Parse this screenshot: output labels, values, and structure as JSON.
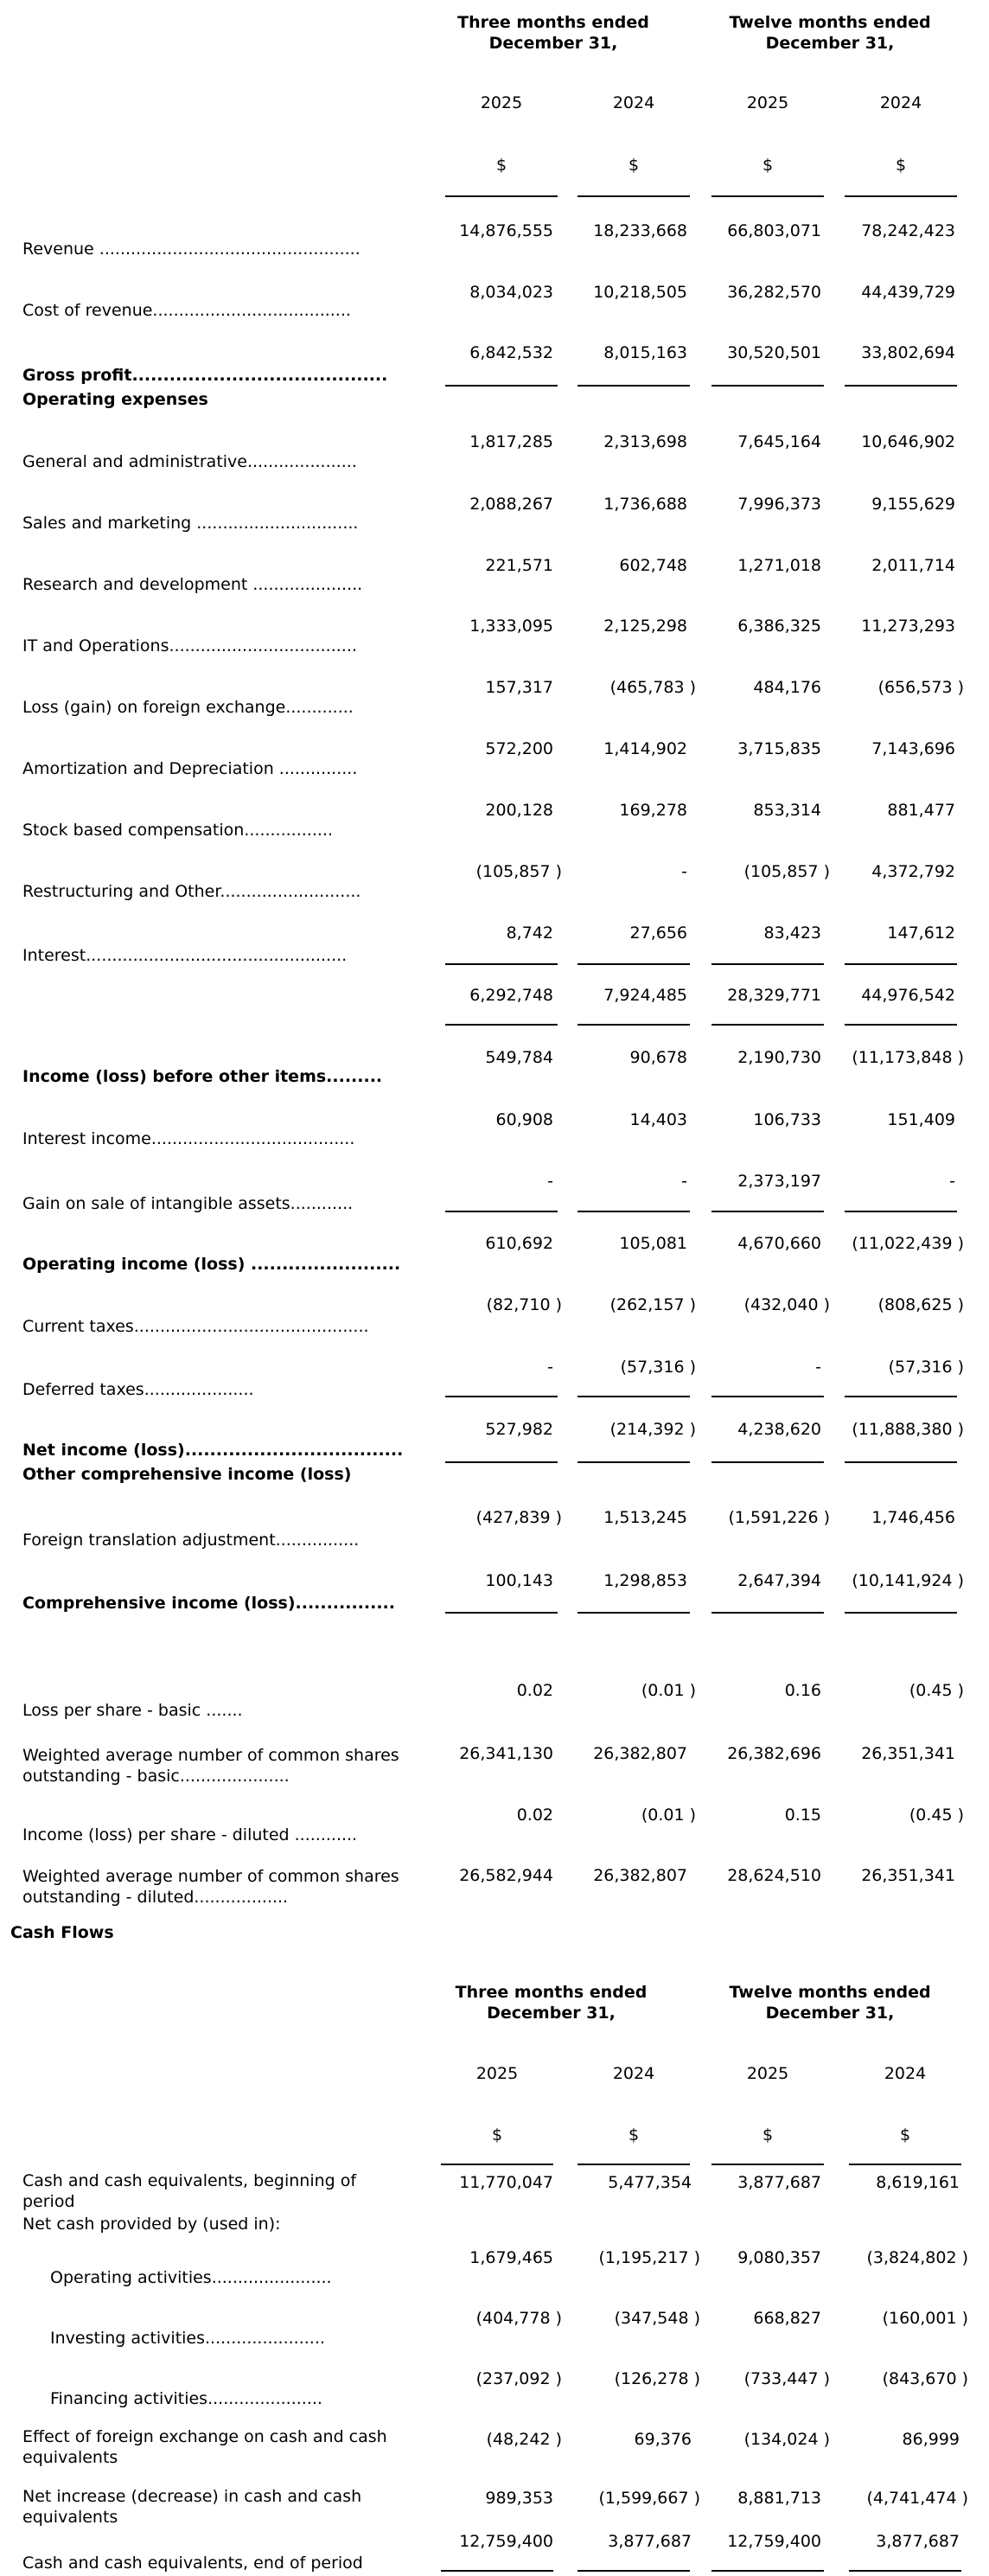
{
  "income": {
    "header": {
      "three_months": [
        "Three months ended",
        "December 31,"
      ],
      "twelve_months": [
        "Twelve months ended",
        "December 31,"
      ],
      "years": [
        "2025",
        "2024",
        "2025",
        "2024"
      ],
      "currency": "$"
    },
    "rows": [
      {
        "label": "Revenue ..................................................",
        "values": [
          "14,876,555",
          "18,233,668",
          "66,803,071",
          "78,242,423"
        ],
        "bold": false
      },
      {
        "label": "Cost of revenue......................................",
        "values": [
          "8,034,023",
          "10,218,505",
          "36,282,570",
          "44,439,729"
        ],
        "bold": false
      },
      {
        "label": "Gross profit.........................................",
        "values": [
          "6,842,532",
          "8,015,163",
          "30,520,501",
          "33,802,694"
        ],
        "bold": true
      },
      {
        "label": "Operating expenses",
        "values": [],
        "bold": true
      },
      {
        "label": "General and administrative.....................",
        "values": [
          "1,817,285",
          "2,313,698",
          "7,645,164",
          "10,646,902"
        ],
        "bold": false
      },
      {
        "label": "Sales and marketing ...............................",
        "values": [
          "2,088,267",
          "1,736,688",
          "7,996,373",
          "9,155,629"
        ],
        "bold": false
      },
      {
        "label": "Research and development .....................",
        "values": [
          "221,571",
          "602,748",
          "1,271,018",
          "2,011,714"
        ],
        "bold": false
      },
      {
        "label": "IT and Operations....................................",
        "values": [
          "1,333,095",
          "2,125,298",
          "6,386,325",
          "11,273,293"
        ],
        "bold": false
      },
      {
        "label": "Loss (gain) on foreign exchange.............",
        "values": [
          "157,317",
          "(465,783 )",
          "484,176",
          "(656,573 )"
        ],
        "bold": false
      },
      {
        "label": "Amortization and Depreciation ...............",
        "values": [
          "572,200",
          "1,414,902",
          "3,715,835",
          "7,143,696"
        ],
        "bold": false
      },
      {
        "label": "Stock based compensation.................",
        "values": [
          "200,128",
          "169,278",
          "853,314",
          "881,477"
        ],
        "bold": false
      },
      {
        "label": "Restructuring and Other...........................",
        "values": [
          "(105,857 )",
          "-",
          "(105,857 )",
          "4,372,792"
        ],
        "bold": false
      },
      {
        "label": "Interest..................................................",
        "values": [
          "8,742",
          "27,656",
          "83,423",
          "147,612"
        ],
        "bold": false
      },
      {
        "label": "",
        "values": [
          "6,292,748",
          "7,924,485",
          "28,329,771",
          "44,976,542"
        ],
        "bold": false
      },
      {
        "label": "Income (loss) before other items.........",
        "values": [
          "549,784",
          "90,678",
          "2,190,730",
          "(11,173,848 )"
        ],
        "bold": true
      },
      {
        "label": "Interest income.......................................",
        "values": [
          "60,908",
          "14,403",
          "106,733",
          "151,409"
        ],
        "bold": false
      },
      {
        "label": "Gain on sale of intangible assets............",
        "values": [
          "-",
          "-",
          "2,373,197",
          "-"
        ],
        "bold": false
      },
      {
        "label": "Operating income (loss) ........................",
        "values": [
          "610,692",
          "105,081",
          "4,670,660",
          "(11,022,439 )"
        ],
        "bold": true
      },
      {
        "label": "Current taxes.............................................",
        "values": [
          "(82,710 )",
          "(262,157 )",
          "(432,040 )",
          "(808,625 )"
        ],
        "bold": false
      },
      {
        "label": "Deferred taxes.....................",
        "values": [
          "-",
          "(57,316 )",
          "-",
          "(57,316 )"
        ],
        "bold": false
      },
      {
        "label": "Net income (loss)...................................",
        "values": [
          "527,982",
          "(214,392 )",
          "4,238,620",
          "(11,888,380 )"
        ],
        "bold": true
      },
      {
        "label": "Other comprehensive income (loss)",
        "values": [],
        "bold": true
      },
      {
        "label": "Foreign translation adjustment................",
        "values": [
          "(427,839 )",
          "1,513,245",
          "(1,591,226 )",
          "1,746,456"
        ],
        "bold": false
      },
      {
        "label": "Comprehensive income (loss)................",
        "values": [
          "100,143",
          "1,298,853",
          "2,647,394",
          "(10,141,924 )"
        ],
        "bold": true
      },
      {
        "label": "Loss per share - basic .......",
        "values": [
          "0.02",
          "(0.01 )",
          "0.16",
          "(0.45 )"
        ],
        "bold": false
      },
      {
        "label": [
          "Weighted average number of common shares",
          "outstanding - basic....................."
        ],
        "values": [
          "26,341,130",
          "26,382,807",
          "26,382,696",
          "26,351,341"
        ],
        "bold": false
      },
      {
        "label": "Income (loss) per share - diluted ............",
        "values": [
          "0.02",
          "(0.01 )",
          "0.15",
          "(0.45 )"
        ],
        "bold": false
      },
      {
        "label": [
          "Weighted average number of common shares",
          "outstanding - diluted.................."
        ],
        "values": [
          "26,582,944",
          "26,382,807",
          "28,624,510",
          "26,351,341"
        ],
        "bold": false
      }
    ]
  },
  "cash_flows": {
    "title": "Cash Flows",
    "header": {
      "three_months": [
        "Three months ended",
        "December 31,"
      ],
      "twelve_months": [
        "Twelve months ended",
        "December 31,"
      ],
      "years": [
        "2025",
        "2024",
        "2025",
        "2024"
      ],
      "currency": "$"
    },
    "rows": [
      {
        "label": [
          "Cash and cash equivalents, beginning of",
          "period"
        ],
        "values": [
          "11,770,047",
          "5,477,354",
          "3,877,687",
          "8,619,161"
        ]
      },
      {
        "label": "Net cash provided by (used in):",
        "values": []
      },
      {
        "label": "Operating activities.......................",
        "values": [
          "1,679,465",
          "(1,195,217 )",
          "9,080,357",
          "(3,824,802 )"
        ]
      },
      {
        "label": "Investing activities.......................",
        "values": [
          "(404,778 )",
          "(347,548 )",
          "668,827",
          "(160,001 )"
        ]
      },
      {
        "label": "Financing activities......................",
        "values": [
          "(237,092 )",
          "(126,278 )",
          "(733,447 )",
          "(843,670 )"
        ]
      },
      {
        "label": [
          "Effect of foreign exchange on cash and cash",
          "equivalents"
        ],
        "values": [
          "(48,242 )",
          "69,376",
          "(134,024 )",
          "86,999"
        ]
      },
      {
        "label": [
          "Net increase (decrease) in cash and cash",
          "equivalents"
        ],
        "values": [
          "989,353",
          "(1,599,667 )",
          "8,881,713",
          "(4,741,474 )"
        ]
      },
      {
        "label": "Cash and cash equivalents, end of period",
        "values": [
          "12,759,400",
          "3,877,687",
          "12,759,400",
          "3,877,687"
        ]
      }
    ]
  }
}
